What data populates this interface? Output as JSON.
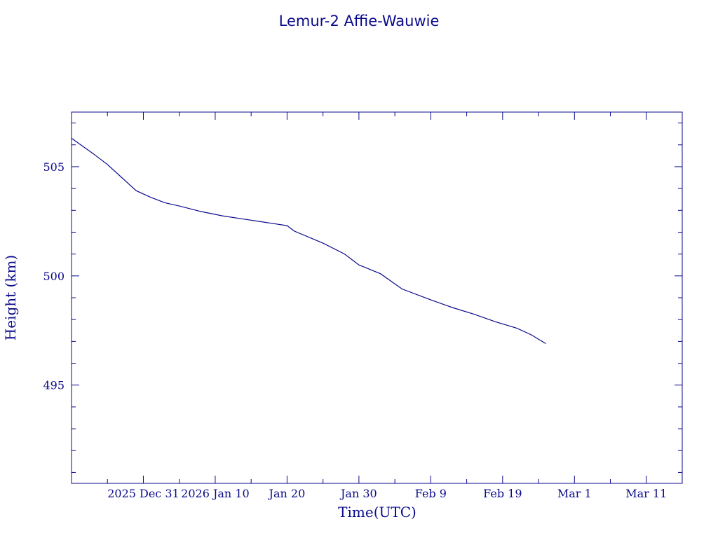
{
  "chart_data": {
    "type": "line",
    "title": "Lemur-2 Affie-Wauwie",
    "xlabel": "Time(UTC)",
    "ylabel": "Height (km)",
    "x_tick_labels": [
      "2025 Dec 31",
      "2026 Jan 10",
      "Jan 20",
      "Jan 30",
      "Feb  9",
      "Feb 19",
      "Mar  1",
      "Mar 11"
    ],
    "x_tick_dates": [
      "2025-12-31",
      "2026-01-10",
      "2026-01-20",
      "2026-01-30",
      "2026-02-09",
      "2026-02-19",
      "2026-03-01",
      "2026-03-11"
    ],
    "xlim": [
      "2025-12-21",
      "2026-03-16"
    ],
    "y_ticks": [
      495,
      500,
      505
    ],
    "ylim": [
      490.5,
      507.5
    ],
    "grid": false,
    "colors": {
      "ink": "#0a0a8c"
    },
    "series": [
      {
        "x": [
          "2025-12-21",
          "2025-12-24",
          "2025-12-26",
          "2025-12-28",
          "2025-12-30",
          "2026-01-01",
          "2026-01-03",
          "2026-01-05",
          "2026-01-08",
          "2026-01-11",
          "2026-01-14",
          "2026-01-16",
          "2026-01-20",
          "2026-01-21",
          "2026-01-25",
          "2026-01-28",
          "2026-01-30",
          "2026-02-02",
          "2026-02-05",
          "2026-02-09",
          "2026-02-12",
          "2026-02-15",
          "2026-02-18",
          "2026-02-21",
          "2026-02-23",
          "2026-02-25"
        ],
        "y": [
          506.3,
          505.6,
          505.1,
          504.5,
          503.9,
          503.6,
          503.35,
          503.2,
          502.95,
          502.75,
          502.6,
          502.5,
          502.3,
          502.05,
          501.5,
          501.0,
          500.5,
          500.1,
          499.4,
          498.9,
          498.55,
          498.25,
          497.9,
          497.6,
          497.3,
          496.9
        ]
      }
    ]
  }
}
